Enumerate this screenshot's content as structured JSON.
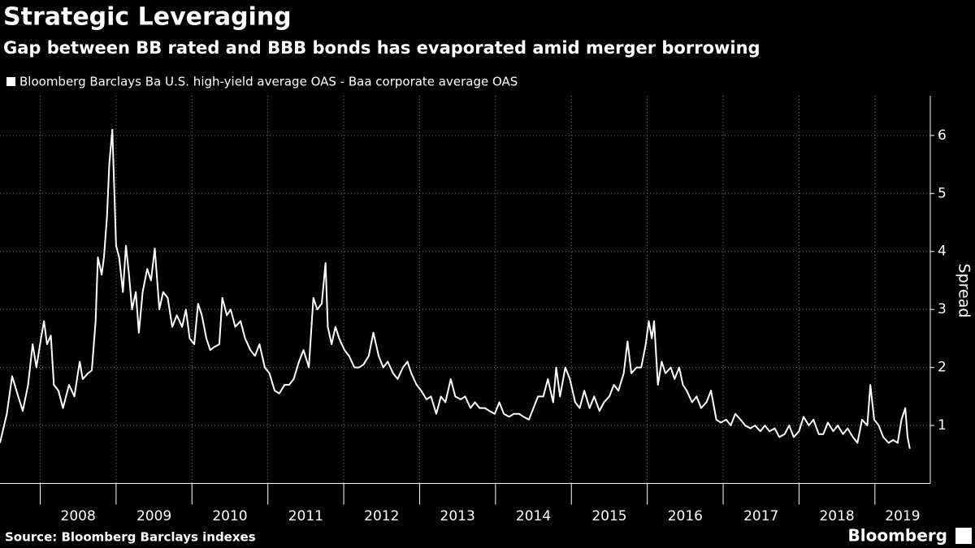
{
  "chart_data": {
    "type": "line",
    "title": "Strategic Leveraging",
    "subtitle": "Gap between BB rated and BBB bonds has evaporated amid merger borrowing",
    "ylabel": "Spread",
    "source": "Source: Bloomberg Barclays indexes",
    "logo": "Bloomberg",
    "xlim": [
      2007.47,
      2019.73
    ],
    "xticks": [
      2008,
      2009,
      2010,
      2011,
      2012,
      2013,
      2014,
      2015,
      2016,
      2017,
      2018,
      2019
    ],
    "ylim": [
      0,
      6.6
    ],
    "yticks": [
      1,
      2,
      3,
      4,
      5,
      6
    ],
    "grid": true,
    "legend": "top-left",
    "x": [
      2007.47,
      2007.56,
      2007.63,
      2007.71,
      2007.77,
      2007.84,
      2007.9,
      2007.95,
      2008.01,
      2008.05,
      2008.09,
      2008.14,
      2008.18,
      2008.24,
      2008.3,
      2008.38,
      2008.45,
      2008.52,
      2008.56,
      2008.63,
      2008.68,
      2008.73,
      2008.76,
      2008.81,
      2008.84,
      2008.88,
      2008.91,
      2008.95,
      2008.97,
      2009.0,
      2009.04,
      2009.09,
      2009.13,
      2009.17,
      2009.21,
      2009.26,
      2009.3,
      2009.35,
      2009.41,
      2009.46,
      2009.51,
      2009.57,
      2009.62,
      2009.68,
      2009.74,
      2009.8,
      2009.87,
      2009.92,
      2009.97,
      2010.03,
      2010.08,
      2010.13,
      2010.19,
      2010.24,
      2010.29,
      2010.36,
      2010.4,
      2010.46,
      2010.51,
      2010.57,
      2010.64,
      2010.7,
      2010.77,
      2010.83,
      2010.89,
      2010.96,
      2011.02,
      2011.09,
      2011.15,
      2011.22,
      2011.28,
      2011.34,
      2011.41,
      2011.47,
      2011.54,
      2011.6,
      2011.65,
      2011.71,
      2011.76,
      2011.79,
      2011.84,
      2011.89,
      2011.94,
      2012.01,
      2012.07,
      2012.14,
      2012.2,
      2012.26,
      2012.33,
      2012.39,
      2012.46,
      2012.52,
      2012.58,
      2012.65,
      2012.71,
      2012.78,
      2012.84,
      2012.89,
      2012.96,
      2013.02,
      2013.09,
      2013.15,
      2013.22,
      2013.28,
      2013.34,
      2013.41,
      2013.47,
      2013.54,
      2013.6,
      2013.67,
      2013.73,
      2013.79,
      2013.86,
      2013.92,
      2013.99,
      2014.05,
      2014.11,
      2014.18,
      2014.24,
      2014.31,
      2014.37,
      2014.44,
      2014.5,
      2014.56,
      2014.63,
      2014.69,
      2014.76,
      2014.8,
      2014.85,
      2014.92,
      2014.98,
      2015.05,
      2015.11,
      2015.17,
      2015.24,
      2015.3,
      2015.37,
      2015.43,
      2015.5,
      2015.56,
      2015.62,
      2015.69,
      2015.74,
      2015.79,
      2015.86,
      2015.92,
      2015.98,
      2016.02,
      2016.06,
      2016.09,
      2016.14,
      2016.19,
      2016.24,
      2016.31,
      2016.36,
      2016.42,
      2016.47,
      2016.52,
      2016.59,
      2016.65,
      2016.71,
      2016.78,
      2016.84,
      2016.91,
      2016.97,
      2017.04,
      2017.1,
      2017.16,
      2017.23,
      2017.29,
      2017.36,
      2017.42,
      2017.49,
      2017.55,
      2017.61,
      2017.68,
      2017.74,
      2017.81,
      2017.87,
      2017.93,
      2018.0,
      2018.06,
      2018.13,
      2018.19,
      2018.26,
      2018.32,
      2018.38,
      2018.45,
      2018.51,
      2018.58,
      2018.64,
      2018.71,
      2018.77,
      2018.83,
      2018.9,
      2018.94,
      2018.99,
      2019.05,
      2019.11,
      2019.18,
      2019.24,
      2019.3,
      2019.35,
      2019.4,
      2019.43,
      2019.46
    ],
    "series": [
      {
        "name": "Bloomberg Barclays Ba U.S. high-yield average OAS - Baa corporate average OAS",
        "color": "#ffffff",
        "values": [
          0.7,
          1.2,
          1.85,
          1.5,
          1.25,
          1.7,
          2.4,
          2.0,
          2.5,
          2.8,
          2.4,
          2.55,
          1.7,
          1.6,
          1.3,
          1.7,
          1.5,
          2.1,
          1.8,
          1.9,
          1.95,
          2.8,
          3.9,
          3.6,
          3.9,
          4.6,
          5.5,
          6.1,
          5.3,
          4.1,
          3.9,
          3.3,
          4.1,
          3.6,
          3.0,
          3.3,
          2.6,
          3.3,
          3.7,
          3.5,
          4.05,
          3.0,
          3.3,
          3.2,
          2.7,
          2.9,
          2.7,
          3.0,
          2.5,
          2.4,
          3.1,
          2.9,
          2.5,
          2.3,
          2.35,
          2.4,
          3.2,
          2.9,
          3.0,
          2.7,
          2.8,
          2.5,
          2.3,
          2.2,
          2.4,
          2.0,
          1.9,
          1.6,
          1.55,
          1.7,
          1.7,
          1.8,
          2.1,
          2.3,
          2.0,
          3.2,
          3.0,
          3.1,
          3.8,
          2.7,
          2.4,
          2.7,
          2.5,
          2.3,
          2.2,
          2.0,
          2.0,
          2.05,
          2.2,
          2.6,
          2.2,
          2.0,
          2.1,
          1.9,
          1.8,
          2.0,
          2.1,
          1.9,
          1.7,
          1.6,
          1.45,
          1.5,
          1.2,
          1.5,
          1.4,
          1.8,
          1.5,
          1.45,
          1.5,
          1.3,
          1.4,
          1.3,
          1.3,
          1.25,
          1.2,
          1.4,
          1.2,
          1.15,
          1.2,
          1.2,
          1.15,
          1.1,
          1.3,
          1.5,
          1.5,
          1.8,
          1.4,
          2.0,
          1.5,
          2.0,
          1.8,
          1.4,
          1.3,
          1.6,
          1.3,
          1.5,
          1.25,
          1.4,
          1.5,
          1.7,
          1.6,
          1.9,
          2.45,
          1.9,
          2.0,
          2.0,
          2.4,
          2.8,
          2.5,
          2.8,
          1.7,
          2.1,
          1.9,
          2.0,
          1.8,
          2.0,
          1.7,
          1.6,
          1.4,
          1.5,
          1.3,
          1.4,
          1.6,
          1.1,
          1.05,
          1.1,
          1.0,
          1.2,
          1.1,
          1.0,
          0.95,
          1.0,
          0.9,
          1.0,
          0.9,
          0.95,
          0.8,
          0.85,
          1.0,
          0.8,
          0.9,
          1.15,
          1.0,
          1.1,
          0.85,
          0.85,
          1.05,
          0.9,
          1.0,
          0.85,
          0.95,
          0.8,
          0.7,
          1.1,
          1.0,
          1.7,
          1.1,
          1.0,
          0.8,
          0.7,
          0.75,
          0.7,
          1.1,
          1.3,
          0.8,
          0.6
        ]
      }
    ]
  }
}
